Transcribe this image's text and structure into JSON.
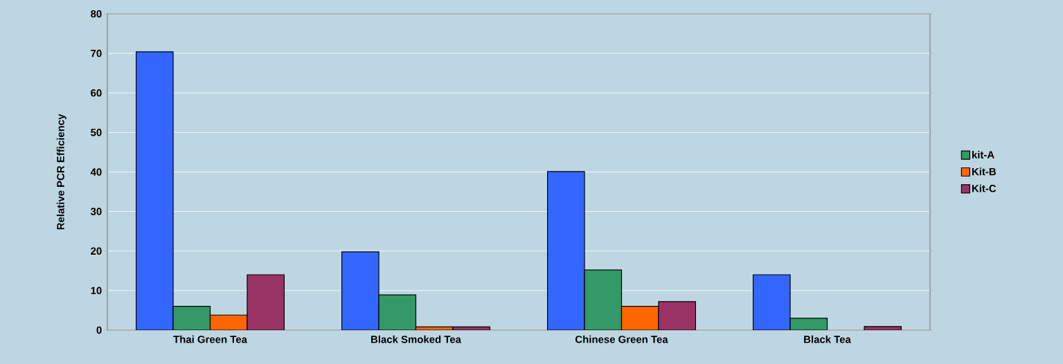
{
  "chart_data": {
    "type": "bar",
    "ylabel": "Relative PCR Efficiency",
    "categories": [
      "Thai Green Tea",
      "Black Smoked Tea",
      "Chinese Green Tea",
      "Black Tea"
    ],
    "series": [
      {
        "color": "#3366ff",
        "values": [
          70.4,
          19.8,
          40.1,
          14
        ]
      },
      {
        "name": "kit-A",
        "color": "#339966",
        "values": [
          6,
          8.9,
          15.2,
          3
        ]
      },
      {
        "name": "Kit-B",
        "color": "#ff6600",
        "values": [
          3.8,
          0.8,
          6,
          null
        ]
      },
      {
        "name": "Kit-C",
        "color": "#993366",
        "values": [
          14,
          0.8,
          7.2,
          0.9
        ]
      }
    ],
    "ylim": [
      0,
      80
    ],
    "yticks": [
      0,
      10,
      20,
      30,
      40,
      50,
      60,
      70,
      80
    ],
    "grid": "y",
    "legend": "right"
  }
}
